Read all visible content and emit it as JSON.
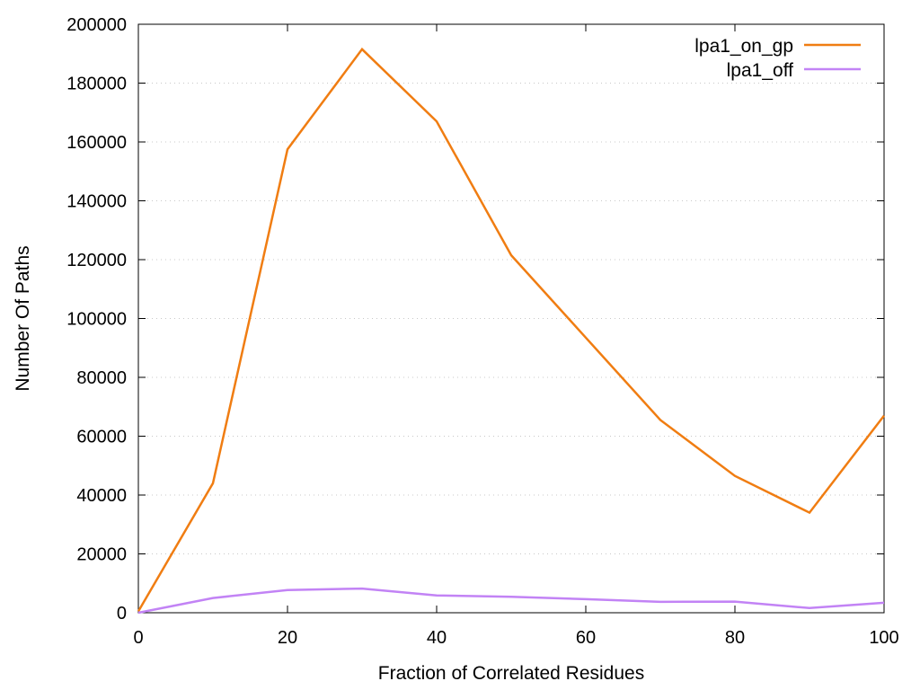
{
  "chart_data": {
    "type": "line",
    "title": "",
    "xlabel": "Fraction of Correlated Residues",
    "ylabel": "Number Of Paths",
    "xlim": [
      0,
      100
    ],
    "ylim": [
      0,
      200000
    ],
    "xticks": [
      0,
      20,
      40,
      60,
      80,
      100
    ],
    "yticks": [
      0,
      20000,
      40000,
      60000,
      80000,
      100000,
      120000,
      140000,
      160000,
      180000,
      200000
    ],
    "grid": "horizontal dotted",
    "legend_position": "top-right",
    "series": [
      {
        "name": "lpa1_on_gp",
        "color": "#f07d12",
        "x": [
          0,
          10,
          20,
          30,
          40,
          50,
          60,
          70,
          80,
          90,
          100
        ],
        "y": [
          500,
          44000,
          157500,
          191500,
          167000,
          121500,
          93500,
          65500,
          46500,
          34000,
          67000
        ]
      },
      {
        "name": "lpa1_off",
        "color": "#c283f5",
        "x": [
          0,
          10,
          20,
          30,
          40,
          50,
          60,
          70,
          80,
          90,
          100
        ],
        "y": [
          0,
          5000,
          7700,
          8200,
          5900,
          5400,
          4600,
          3700,
          3800,
          1600,
          3400
        ]
      }
    ]
  }
}
